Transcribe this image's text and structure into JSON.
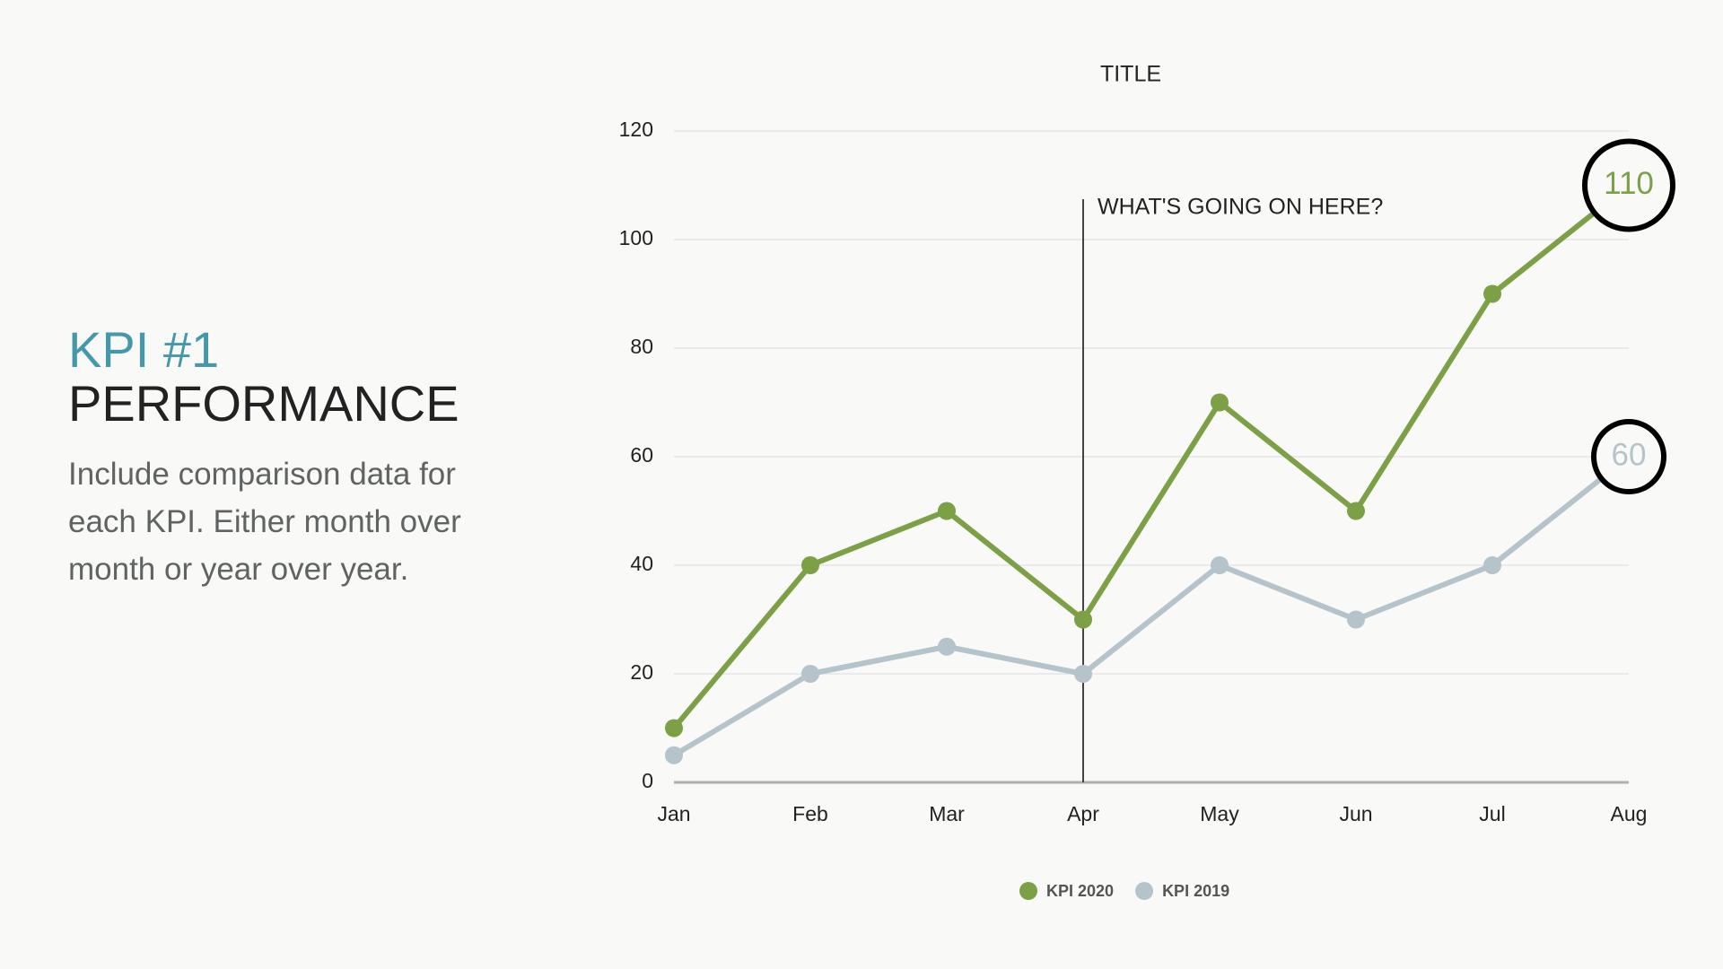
{
  "kpi_panel": {
    "heading": "KPI #1",
    "subheading": "PERFORMANCE",
    "body": "Include comparison data for each KPI. Either month over month or year over year."
  },
  "chart_data": {
    "type": "line",
    "title": "TITLE",
    "categories": [
      "Jan",
      "Feb",
      "Mar",
      "Apr",
      "May",
      "Jun",
      "Jul",
      "Aug"
    ],
    "series": [
      {
        "name": "KPI 2020",
        "color": "#7ba046",
        "values": [
          10,
          40,
          50,
          30,
          70,
          50,
          90,
          110
        ]
      },
      {
        "name": "KPI 2019",
        "color": "#b4c4ca",
        "values": [
          5,
          20,
          25,
          20,
          40,
          30,
          40,
          60
        ]
      }
    ],
    "ylim": [
      0,
      120
    ],
    "yticks": [
      0,
      20,
      40,
      60,
      80,
      100,
      120
    ],
    "grid": true,
    "legend": "bottom",
    "highlight_last": true,
    "annotation": {
      "text": "WHAT'S GOING ON HERE?",
      "x": "Apr"
    }
  }
}
